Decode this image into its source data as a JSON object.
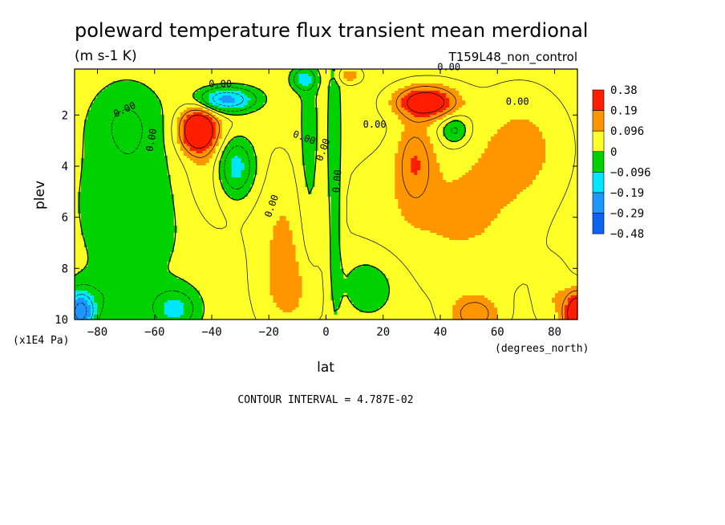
{
  "colors": {
    "background": "#ffffff",
    "axis": "#000000",
    "levels": [
      "#0a64f0",
      "#1e96ff",
      "#00e6ff",
      "#00d200",
      "#ffff28",
      "#ff9600",
      "#ff1e00"
    ]
  },
  "chart_data": {
    "type": "heatmap",
    "title": "poleward temperature flux transient mean merdional",
    "units": "(m s-1 K)",
    "subtitle_right": "T159L48_non_control",
    "xlabel": "lat",
    "xunits": "(degrees_north)",
    "ylabel": "plev",
    "yunits": "(x1E4 Pa)",
    "xlim": [
      -88,
      88
    ],
    "ylim": [
      10,
      0.2
    ],
    "x_ticks": [
      -80,
      -60,
      -40,
      -20,
      0,
      20,
      40,
      60,
      80
    ],
    "y_ticks": [
      2,
      4,
      6,
      8,
      10
    ],
    "colorbar": {
      "labels": [
        "0.38",
        "0.19",
        "0.096",
        "0",
        "-0.096",
        "-0.19",
        "-0.29",
        "-0.48"
      ],
      "bins": [
        "#ff1e00",
        "#ff9600",
        "#ffff28",
        "#00d200",
        "#00e6ff",
        "#1e96ff",
        "#0a64f0"
      ]
    },
    "contour_labels": [
      "0.00",
      "0.00",
      "0.00",
      "0.00",
      "0.00",
      "0.00",
      "0.00",
      "0.00",
      "0.00",
      "0.00"
    ],
    "footer": "CONTOUR INTERVAL = 4.787E-02",
    "field": {
      "background": 0.03,
      "features": [
        {
          "lat": -68,
          "plev": 5.5,
          "rx": 20,
          "ry": 3.5,
          "amp": -0.07
        },
        {
          "lat": -70,
          "plev": 2.2,
          "rx": 12,
          "ry": 1.5,
          "amp": -0.06
        },
        {
          "lat": -45,
          "plev": 2.6,
          "rx": 6,
          "ry": 0.8,
          "amp": 0.34
        },
        {
          "lat": -38,
          "plev": 3.6,
          "rx": 12,
          "ry": 2.5,
          "amp": 0.1
        },
        {
          "lat": -32,
          "plev": 4.0,
          "rx": 7,
          "ry": 1.3,
          "amp": -0.22
        },
        {
          "lat": -35,
          "plev": 1.4,
          "rx": 10,
          "ry": 0.5,
          "amp": -0.28
        },
        {
          "lat": -15,
          "plev": 7.0,
          "rx": 10,
          "ry": 3.0,
          "amp": 0.07
        },
        {
          "lat": -6,
          "plev": 4.0,
          "rx": 4,
          "ry": 5.0,
          "amp": -0.06
        },
        {
          "lat": 3,
          "plev": 4.5,
          "rx": 2.5,
          "ry": 5.5,
          "amp": -0.08
        },
        {
          "lat": -8,
          "plev": 0.6,
          "rx": 4,
          "ry": 0.4,
          "amp": -0.14
        },
        {
          "lat": 8,
          "plev": 0.45,
          "rx": 4,
          "ry": 0.3,
          "amp": 0.1
        },
        {
          "lat": 35,
          "plev": 1.5,
          "rx": 10,
          "ry": 0.6,
          "amp": 0.3
        },
        {
          "lat": 31,
          "plev": 3.8,
          "rx": 6,
          "ry": 1.5,
          "amp": 0.13
        },
        {
          "lat": 45,
          "plev": 2.6,
          "rx": 5,
          "ry": 0.6,
          "amp": -0.12
        },
        {
          "lat": 70,
          "plev": 3.2,
          "rx": 14,
          "ry": 2.0,
          "amp": 0.07
        },
        {
          "lat": 30,
          "plev": 6.0,
          "rx": 26,
          "ry": 2.8,
          "amp": 0.05
        },
        {
          "lat": 55,
          "plev": 5.5,
          "rx": 20,
          "ry": 3.5,
          "amp": 0.05
        },
        {
          "lat": 15,
          "plev": 8.6,
          "rx": 12,
          "ry": 1.4,
          "amp": -0.07
        },
        {
          "lat": 52,
          "plev": 9.8,
          "rx": 8,
          "ry": 0.7,
          "amp": 0.14
        },
        {
          "lat": 88,
          "plev": 9.8,
          "rx": 4,
          "ry": 0.8,
          "amp": 0.38
        },
        {
          "lat": 80,
          "plev": 9.2,
          "rx": 6,
          "ry": 1.3,
          "amp": 0.06
        },
        {
          "lat": -53,
          "plev": 9.6,
          "rx": 8,
          "ry": 0.8,
          "amp": -0.14
        },
        {
          "lat": -86,
          "plev": 9.7,
          "rx": 5,
          "ry": 0.8,
          "amp": -0.3
        },
        {
          "lat": -75,
          "plev": 9.1,
          "rx": 10,
          "ry": 1.0,
          "amp": -0.05
        },
        {
          "lat": -10,
          "plev": 9.0,
          "rx": 12,
          "ry": 1.5,
          "amp": 0.05
        }
      ]
    }
  }
}
